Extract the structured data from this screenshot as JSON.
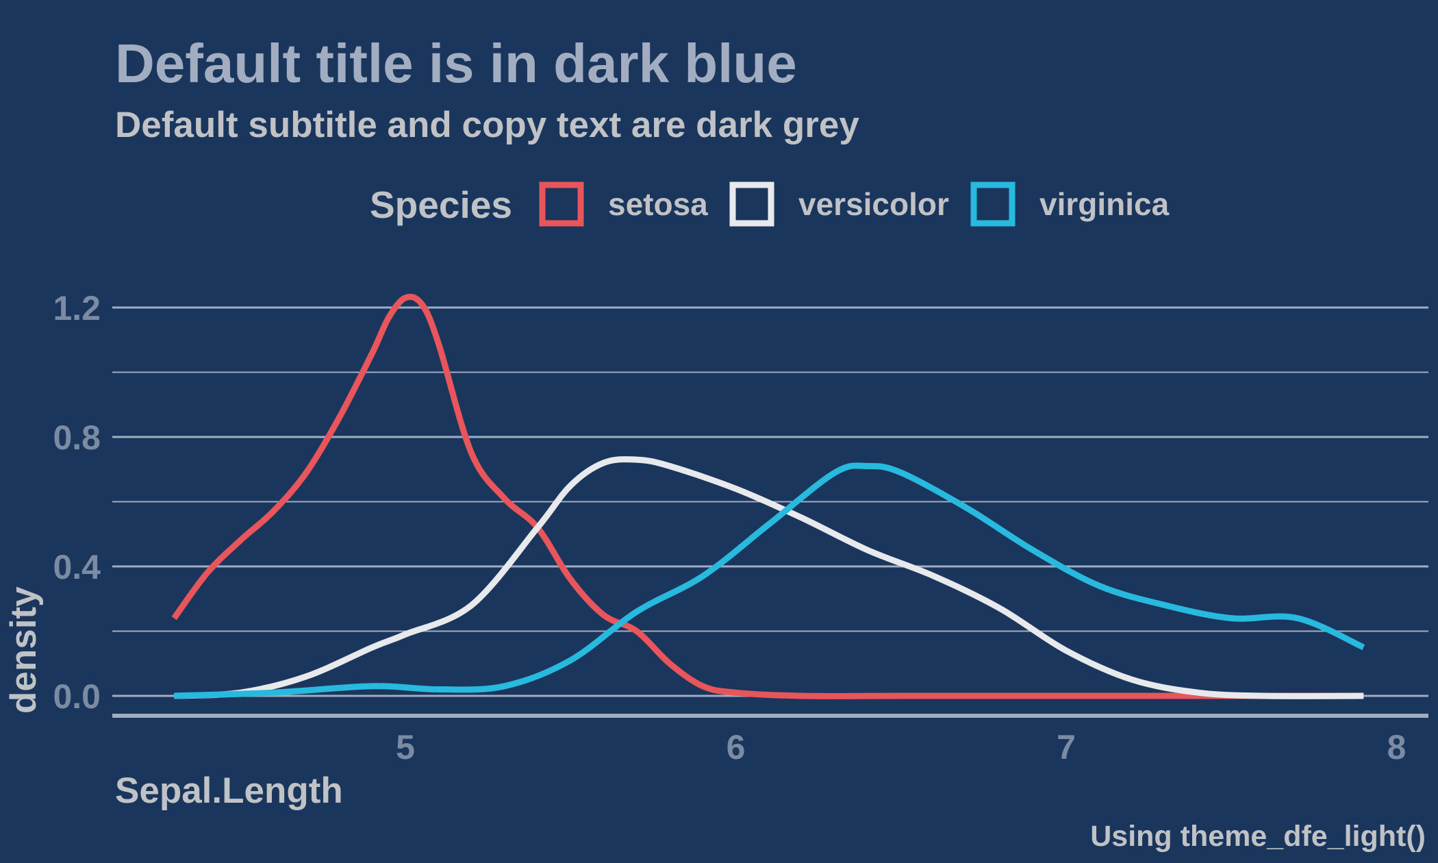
{
  "page": {
    "background": "#1b365d"
  },
  "chart_data": {
    "type": "line",
    "title": "Default title is in dark blue",
    "subtitle": "Default subtitle and copy text are dark grey",
    "caption": "Using theme_dfe_light()",
    "xlabel": "Sepal.Length",
    "ylabel": "density",
    "legend_title": "Species",
    "legend_position": "top",
    "grid": true,
    "xlim": [
      4.3,
      7.9
    ],
    "ylim": [
      0,
      1.2
    ],
    "x_ticks": [
      5,
      6,
      7,
      8
    ],
    "x_tick_labels": [
      "5",
      "6",
      "7",
      "8"
    ],
    "y_ticks": [
      0,
      0.4,
      0.8,
      1.2
    ],
    "y_tick_labels": [
      "0.0",
      "0.4",
      "0.8",
      "1.2"
    ],
    "series": [
      {
        "name": "setosa",
        "color": "#e8555b",
        "x": [
          4.3,
          4.4,
          4.5,
          4.6,
          4.7,
          4.8,
          4.9,
          4.95,
          5.0,
          5.05,
          5.1,
          5.2,
          5.3,
          5.4,
          5.5,
          5.6,
          5.7,
          5.8,
          5.9,
          6.0,
          6.2,
          6.5,
          7.0,
          7.5,
          7.9
        ],
        "y": [
          0.24,
          0.38,
          0.48,
          0.57,
          0.69,
          0.86,
          1.06,
          1.17,
          1.23,
          1.21,
          1.09,
          0.75,
          0.61,
          0.52,
          0.36,
          0.25,
          0.2,
          0.1,
          0.03,
          0.01,
          0.0,
          0.0,
          0.0,
          0.0,
          0.0
        ]
      },
      {
        "name": "versicolor",
        "color": "#e8e9ec",
        "x": [
          4.3,
          4.5,
          4.7,
          4.9,
          5.0,
          5.2,
          5.4,
          5.5,
          5.6,
          5.7,
          5.8,
          6.0,
          6.2,
          6.4,
          6.6,
          6.8,
          7.0,
          7.2,
          7.4,
          7.6,
          7.9
        ],
        "y": [
          0.0,
          0.01,
          0.06,
          0.15,
          0.19,
          0.28,
          0.52,
          0.65,
          0.72,
          0.73,
          0.71,
          0.64,
          0.55,
          0.45,
          0.37,
          0.27,
          0.14,
          0.05,
          0.01,
          0.0,
          0.0
        ]
      },
      {
        "name": "virginica",
        "color": "#28b9de",
        "x": [
          4.3,
          4.6,
          4.9,
          5.1,
          5.3,
          5.5,
          5.7,
          5.9,
          6.1,
          6.3,
          6.4,
          6.5,
          6.7,
          6.9,
          7.1,
          7.3,
          7.5,
          7.7,
          7.9
        ],
        "y": [
          0.0,
          0.01,
          0.03,
          0.02,
          0.03,
          0.11,
          0.26,
          0.37,
          0.53,
          0.69,
          0.71,
          0.69,
          0.58,
          0.45,
          0.34,
          0.28,
          0.24,
          0.24,
          0.15
        ]
      }
    ]
  }
}
